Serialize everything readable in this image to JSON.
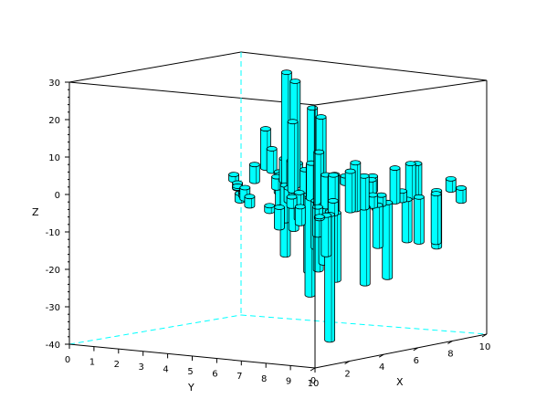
{
  "chart_data": {
    "type": "bar3d",
    "title": "",
    "xlabel": "X",
    "ylabel": "Y",
    "zlabel": "Z",
    "xlim": [
      0,
      10
    ],
    "ylim": [
      0,
      10
    ],
    "zlim": [
      -40,
      30
    ],
    "x_ticks": [
      "0",
      "2",
      "4",
      "6",
      "8",
      "10"
    ],
    "y_ticks": [
      "0",
      "1",
      "2",
      "3",
      "4",
      "5",
      "6",
      "7",
      "8",
      "9",
      "10"
    ],
    "z_ticks": [
      "-40",
      "-30",
      "-20",
      "-10",
      "0",
      "10",
      "20",
      "30"
    ],
    "bar_color": "#00ffff",
    "edge_color": "#000000",
    "axis_color": "#000000",
    "hidden_axis_color": "#00ffff",
    "grid": false,
    "bars": [
      {
        "x": 9.5,
        "y": 0.9,
        "z": -4.5
      },
      {
        "x": 9.0,
        "y": 1.7,
        "z": 10.5
      },
      {
        "x": 8.5,
        "y": 2.3,
        "z": 6.0
      },
      {
        "x": 8.5,
        "y": 2.6,
        "z": -5.5
      },
      {
        "x": 8.0,
        "y": 3.0,
        "z": -9.0
      },
      {
        "x": 7.5,
        "y": 3.2,
        "z": -3.0
      },
      {
        "x": 8.0,
        "y": 3.7,
        "z": 3.5
      },
      {
        "x": 7.0,
        "y": 3.9,
        "z": -20.0
      },
      {
        "x": 6.5,
        "y": 4.3,
        "z": 29.5
      },
      {
        "x": 6.8,
        "y": 4.0,
        "z": 6.0
      },
      {
        "x": 6.0,
        "y": 4.6,
        "z": -9.5
      },
      {
        "x": 6.0,
        "y": 5.0,
        "z": 28.0
      },
      {
        "x": 5.8,
        "y": 5.0,
        "z": 7.0
      },
      {
        "x": 5.5,
        "y": 5.1,
        "z": -3.5
      },
      {
        "x": 5.0,
        "y": 5.6,
        "z": 18.5
      },
      {
        "x": 5.2,
        "y": 5.5,
        "z": -10.5
      },
      {
        "x": 5.0,
        "y": 6.1,
        "z": 6.0
      },
      {
        "x": 4.8,
        "y": 6.0,
        "z": -7.0
      },
      {
        "x": 4.5,
        "y": 6.6,
        "z": -20.5
      },
      {
        "x": 4.5,
        "y": 6.7,
        "z": 8.0
      },
      {
        "x": 4.0,
        "y": 7.0,
        "z": -26.0
      },
      {
        "x": 4.0,
        "y": 7.1,
        "z": 24.0
      },
      {
        "x": 3.8,
        "y": 7.2,
        "z": 9.5
      },
      {
        "x": 3.5,
        "y": 7.6,
        "z": -12.5
      },
      {
        "x": 3.5,
        "y": 7.8,
        "z": 22.5
      },
      {
        "x": 3.2,
        "y": 7.9,
        "z": -18.0
      },
      {
        "x": 2.8,
        "y": 8.2,
        "z": 14.0
      },
      {
        "x": 2.8,
        "y": 8.4,
        "z": -15.5
      },
      {
        "x": 2.5,
        "y": 8.7,
        "z": 8.5
      },
      {
        "x": 2.3,
        "y": 8.5,
        "z": -7.5
      },
      {
        "x": 2.0,
        "y": 9.4,
        "z": 9.5
      },
      {
        "x": 1.6,
        "y": 9.5,
        "z": -15.0
      },
      {
        "x": 1.5,
        "y": 9.7,
        "z": 10.0
      },
      {
        "x": 1.0,
        "y": 9.9,
        "z": -33.5
      },
      {
        "x": 0.8,
        "y": 9.9,
        "z": -10.5
      },
      {
        "x": 6.0,
        "y": 2.5,
        "z": 1.5
      },
      {
        "x": 5.5,
        "y": 3.0,
        "z": -1.5
      },
      {
        "x": 4.5,
        "y": 3.7,
        "z": 0.5
      },
      {
        "x": 3.5,
        "y": 4.5,
        "z": -2.0
      },
      {
        "x": 3.0,
        "y": 5.0,
        "z": 1.0
      },
      {
        "x": 2.5,
        "y": 5.4,
        "z": 3.0
      },
      {
        "x": 8.8,
        "y": 9.8,
        "z": -3.5
      },
      {
        "x": 8.2,
        "y": 9.8,
        "z": 3.0
      },
      {
        "x": 7.8,
        "y": 9.5,
        "z": -15.0
      },
      {
        "x": 7.2,
        "y": 9.9,
        "z": -13.0
      },
      {
        "x": 6.5,
        "y": 9.6,
        "z": 8.5
      },
      {
        "x": 6.2,
        "y": 9.9,
        "z": -12.0
      },
      {
        "x": 6.0,
        "y": 9.7,
        "z": 9.0
      },
      {
        "x": 5.5,
        "y": 9.9,
        "z": -11.0
      },
      {
        "x": 5.2,
        "y": 9.9,
        "z": 2.5
      },
      {
        "x": 4.8,
        "y": 9.9,
        "z": 9.0
      },
      {
        "x": 4.5,
        "y": 9.8,
        "z": -20.0
      },
      {
        "x": 4.0,
        "y": 9.9,
        "z": 2.5
      },
      {
        "x": 3.8,
        "y": 9.9,
        "z": -11.0
      },
      {
        "x": 3.5,
        "y": 9.9,
        "z": 3.0
      },
      {
        "x": 3.2,
        "y": 9.8,
        "z": -20.5
      },
      {
        "x": 3.0,
        "y": 9.9,
        "z": 8.5
      },
      {
        "x": 2.5,
        "y": 9.9,
        "z": 12.5
      },
      {
        "x": 2.2,
        "y": 9.9,
        "z": 10.5
      },
      {
        "x": 1.5,
        "y": 9.8,
        "z": -18.0
      },
      {
        "x": 1.2,
        "y": 9.9,
        "z": 3.5
      },
      {
        "x": 0.4,
        "y": 9.9,
        "z": -0.5
      },
      {
        "x": 2.0,
        "y": 8.0,
        "z": -4.5
      },
      {
        "x": 3.8,
        "y": 6.4,
        "z": -2.5
      },
      {
        "x": 7.5,
        "y": 6.0,
        "z": 2.0
      },
      {
        "x": 7.2,
        "y": 7.0,
        "z": -6.0
      },
      {
        "x": 6.5,
        "y": 7.8,
        "z": 4.0
      },
      {
        "x": 5.6,
        "y": 8.6,
        "z": -3.5
      },
      {
        "x": 5.0,
        "y": 8.8,
        "z": 5.0
      },
      {
        "x": 1.2,
        "y": 6.5,
        "z": 2.5
      },
      {
        "x": 1.5,
        "y": 7.5,
        "z": -5.5
      },
      {
        "x": 0.5,
        "y": 7.8,
        "z": 1.5
      }
    ]
  }
}
